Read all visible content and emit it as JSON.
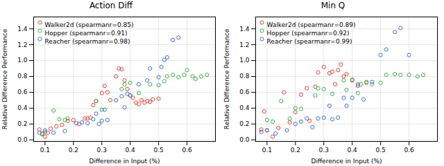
{
  "chart_data": [
    {
      "type": "scatter",
      "title": "Action Diff",
      "xlabel": "Difference in Input (%)",
      "ylabel": "Relative Difference Performance",
      "xlim": [
        0.06,
        0.7
      ],
      "ylim": [
        -0.02,
        1.55
      ],
      "xticks": [
        0.1,
        0.2,
        0.3,
        0.4,
        0.5,
        0.6
      ],
      "yticks": [
        {
          "value": 0.0,
          "label": "0.0"
        },
        0.2,
        0.4,
        0.6,
        0.8,
        {
          "value": 1.0,
          "label": "1.0"
        },
        1.2,
        1.4
      ],
      "grid": true,
      "legend": "upper left",
      "series": [
        {
          "name": "Walker2d (spearmanr=0.85)",
          "color": "#e8413a",
          "x": [
            0.08,
            0.09,
            0.1,
            0.11,
            0.12,
            0.14,
            0.16,
            0.18,
            0.2,
            0.22,
            0.24,
            0.25,
            0.26,
            0.27,
            0.28,
            0.3,
            0.31,
            0.32,
            0.33,
            0.35,
            0.36,
            0.37,
            0.38,
            0.39,
            0.4,
            0.41,
            0.42,
            0.43,
            0.44,
            0.45,
            0.46,
            0.47,
            0.48,
            0.5
          ],
          "values": [
            0.13,
            0.08,
            0.04,
            0.09,
            0.14,
            0.17,
            0.19,
            0.24,
            0.25,
            0.2,
            0.27,
            0.27,
            0.28,
            0.44,
            0.49,
            0.59,
            0.68,
            0.6,
            0.5,
            0.8,
            0.9,
            0.89,
            0.75,
            0.64,
            0.56,
            0.53,
            0.47,
            0.45,
            0.5,
            0.47,
            0.49,
            0.48,
            0.51,
            0.52
          ]
        },
        {
          "name": "Hopper (spearmanr=0.91)",
          "color": "#3cb044",
          "x": [
            0.09,
            0.1,
            0.13,
            0.15,
            0.17,
            0.18,
            0.28,
            0.3,
            0.37,
            0.38,
            0.4,
            0.43,
            0.47,
            0.5,
            0.52,
            0.53,
            0.55,
            0.57,
            0.59,
            0.6,
            0.62,
            0.63,
            0.65,
            0.67
          ],
          "values": [
            0.07,
            0.1,
            0.37,
            0.26,
            0.25,
            0.27,
            0.49,
            0.38,
            0.64,
            0.7,
            0.72,
            0.59,
            0.7,
            0.69,
            0.74,
            0.8,
            0.82,
            0.79,
            0.82,
            0.88,
            0.8,
            0.77,
            0.8,
            0.82
          ]
        },
        {
          "name": "Reacher (spearmanr=0.98)",
          "color": "#3a6fe8",
          "x": [
            0.08,
            0.1,
            0.13,
            0.17,
            0.21,
            0.23,
            0.25,
            0.27,
            0.28,
            0.29,
            0.3,
            0.31,
            0.32,
            0.35,
            0.37,
            0.38,
            0.39,
            0.4,
            0.43,
            0.46,
            0.47,
            0.5,
            0.51,
            0.52,
            0.53,
            0.55,
            0.57
          ],
          "values": [
            0.09,
            0.12,
            0.09,
            0.11,
            0.21,
            0.22,
            0.21,
            0.26,
            0.33,
            0.2,
            0.24,
            0.38,
            0.25,
            0.5,
            0.55,
            0.41,
            0.58,
            0.56,
            0.7,
            0.75,
            0.9,
            0.79,
            0.92,
            1.01,
            1.04,
            1.26,
            1.29
          ]
        }
      ]
    },
    {
      "type": "scatter",
      "title": "Min Q",
      "xlabel": "Difference in Input (%)",
      "ylabel": "Relative Difference Performance",
      "xlim": [
        0.06,
        0.7
      ],
      "ylim": [
        -0.02,
        1.55
      ],
      "xticks": [
        0.1,
        0.2,
        0.3,
        0.4,
        0.5,
        0.6
      ],
      "yticks": [
        {
          "value": 0.0,
          "label": "0.0"
        },
        0.2,
        0.4,
        0.6,
        0.8,
        {
          "value": 1.0,
          "label": "1.0"
        },
        1.2,
        1.4
      ],
      "grid": true,
      "legend": "upper left",
      "series": [
        {
          "name": "Walker2d (spearmanr=0.89)",
          "color": "#e8413a",
          "x": [
            0.08,
            0.09,
            0.1,
            0.12,
            0.14,
            0.16,
            0.18,
            0.2,
            0.22,
            0.24,
            0.25,
            0.27,
            0.28,
            0.3,
            0.32,
            0.33,
            0.34,
            0.35,
            0.36,
            0.37,
            0.38,
            0.4,
            0.42,
            0.45
          ],
          "values": [
            0.13,
            0.36,
            0.12,
            0.04,
            0.15,
            0.6,
            0.22,
            0.35,
            0.57,
            0.65,
            0.24,
            0.67,
            0.85,
            0.92,
            0.84,
            0.86,
            0.7,
            0.88,
            0.95,
            0.8,
            0.83,
            0.75,
            0.68,
            0.72
          ]
        },
        {
          "name": "Hopper (spearmanr=0.92)",
          "color": "#3cb044",
          "x": [
            0.1,
            0.12,
            0.15,
            0.18,
            0.2,
            0.22,
            0.27,
            0.28,
            0.3,
            0.33,
            0.37,
            0.38,
            0.4,
            0.42,
            0.43,
            0.45,
            0.47,
            0.5,
            0.52,
            0.55,
            0.57,
            0.6,
            0.63,
            0.65
          ],
          "values": [
            0.25,
            0.23,
            0.49,
            0.27,
            0.4,
            0.39,
            0.56,
            0.65,
            0.64,
            0.58,
            0.75,
            0.63,
            0.76,
            0.59,
            0.7,
            0.73,
            0.7,
            0.72,
            0.82,
            0.83,
            0.82,
            0.82,
            0.8,
            0.82
          ]
        },
        {
          "name": "Reacher (spearmanr=0.99)",
          "color": "#3a6fe8",
          "x": [
            0.08,
            0.1,
            0.13,
            0.17,
            0.2,
            0.22,
            0.24,
            0.26,
            0.28,
            0.3,
            0.32,
            0.33,
            0.35,
            0.37,
            0.38,
            0.4,
            0.42,
            0.44,
            0.47,
            0.5,
            0.52,
            0.55,
            0.57,
            0.6
          ],
          "values": [
            0.1,
            0.12,
            0.08,
            0.12,
            0.2,
            0.23,
            0.27,
            0.16,
            0.27,
            0.28,
            0.43,
            0.26,
            0.28,
            0.53,
            0.43,
            0.53,
            0.7,
            0.51,
            0.73,
            1.07,
            1.14,
            1.36,
            1.41,
            1.07
          ]
        }
      ]
    }
  ]
}
